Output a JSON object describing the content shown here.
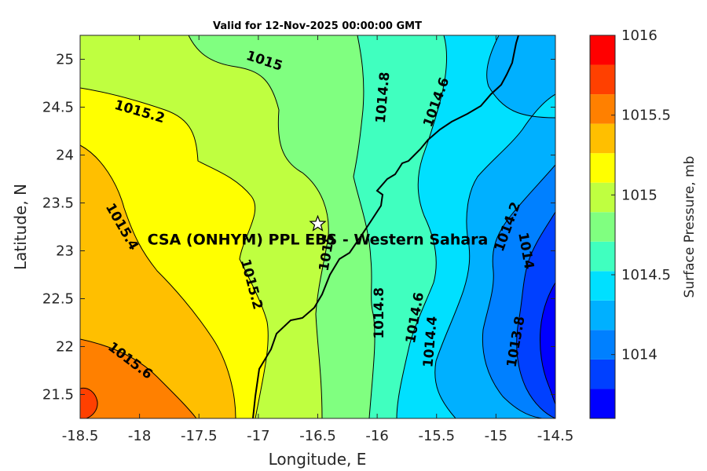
{
  "chart_data": {
    "type": "contour",
    "title": "Valid for 12-Nov-2025 00:00:00 GMT",
    "xlabel": "Longitude, E",
    "ylabel": "Latitude, N",
    "xlim": [
      -18.5,
      -14.5
    ],
    "ylim": [
      21.25,
      25.25
    ],
    "xticks": [
      -18.5,
      -18,
      -17.5,
      -17,
      -16.5,
      -16,
      -15.5,
      -15,
      -14.5
    ],
    "xtick_labels": [
      "-18.5",
      "-18",
      "-17.5",
      "-17",
      "-16.5",
      "-16",
      "-15.5",
      "-15",
      "-14.5"
    ],
    "yticks": [
      21.5,
      22,
      22.5,
      23,
      23.5,
      24,
      24.5,
      25
    ],
    "ytick_labels": [
      "21.5",
      "22",
      "22.5",
      "23",
      "23.5",
      "24",
      "24.5",
      "25"
    ],
    "colorbar": {
      "label": "Surface Pressure, mb",
      "range": [
        1013.6,
        1016
      ],
      "ticks": [
        1014,
        1014.5,
        1015,
        1015.5,
        1016
      ],
      "tick_labels": [
        "1014",
        "1014.5",
        "1015",
        "1015.5",
        "1016"
      ],
      "levels": [
        1013.6,
        1013.7,
        1013.8,
        1013.9,
        1014.0,
        1014.1,
        1014.2,
        1014.3,
        1014.4,
        1014.5,
        1014.6,
        1014.7,
        1014.8,
        1014.9,
        1015.0,
        1015.1,
        1015.2,
        1015.3,
        1015.4,
        1015.5,
        1015.6,
        1015.7,
        1015.8,
        1015.9,
        1016.0
      ],
      "band_colors": [
        "#0000ff",
        "#0040ff",
        "#0080ff",
        "#00b0ff",
        "#00e0ff",
        "#40ffbf",
        "#80ff80",
        "#bfff40",
        "#ffff00",
        "#ffbf00",
        "#ff8000",
        "#ff4000",
        "#ff0000"
      ]
    },
    "contour_labels": [
      {
        "text": "1015",
        "lon": -16.95,
        "lat": 24.98,
        "angle": 18
      },
      {
        "text": "1015.2",
        "lon": -18.0,
        "lat": 24.45,
        "angle": 16
      },
      {
        "text": "1014.8",
        "lon": -15.95,
        "lat": 24.6,
        "angle": -85
      },
      {
        "text": "1014.6",
        "lon": -15.5,
        "lat": 24.55,
        "angle": -70
      },
      {
        "text": "1015.4",
        "lon": -18.15,
        "lat": 23.25,
        "angle": 60
      },
      {
        "text": "1015",
        "lon": -16.42,
        "lat": 22.98,
        "angle": -80
      },
      {
        "text": "1015.2",
        "lon": -17.06,
        "lat": 22.65,
        "angle": 75
      },
      {
        "text": "1014.2",
        "lon": -14.9,
        "lat": 23.25,
        "angle": -70
      },
      {
        "text": "1014",
        "lon": -14.75,
        "lat": 23.0,
        "angle": 80
      },
      {
        "text": "1014.8",
        "lon": -15.98,
        "lat": 22.35,
        "angle": -90
      },
      {
        "text": "1014.6",
        "lon": -15.68,
        "lat": 22.3,
        "angle": -80
      },
      {
        "text": "1014.4",
        "lon": -15.55,
        "lat": 22.05,
        "angle": -85
      },
      {
        "text": "1013.8",
        "lon": -14.83,
        "lat": 22.05,
        "angle": -80
      },
      {
        "text": "1015.6",
        "lon": -18.08,
        "lat": 21.85,
        "angle": 37
      }
    ],
    "annotation": {
      "text": "CSA (ONHYM) PPL EBS - Western Sahara",
      "lon": -16.5,
      "lat": 23.28
    },
    "marker": {
      "symbol": "star",
      "lon": -16.5,
      "lat": 23.28
    },
    "grid": false
  }
}
